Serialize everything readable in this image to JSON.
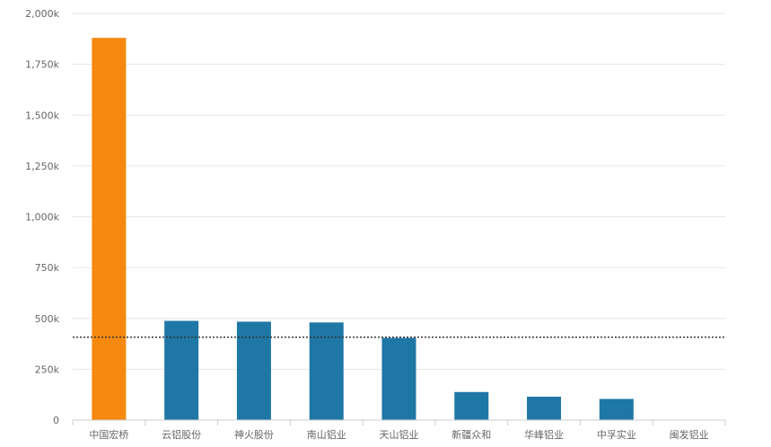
{
  "chart_data": {
    "type": "bar",
    "categories": [
      "中国宏桥",
      "云铝股份",
      "神火股份",
      "南山铝业",
      "天山铝业",
      "新疆众和",
      "华峰铝业",
      "中孚实业",
      "闽发铝业"
    ],
    "values": [
      1880,
      488,
      484,
      480,
      404,
      138,
      115,
      104,
      0
    ],
    "highlight_index": 0,
    "ylim": [
      0,
      2000
    ],
    "yticks": [
      0,
      250,
      500,
      750,
      1000,
      1250,
      1500,
      1750,
      2000
    ],
    "ytick_labels": [
      "0",
      "250k",
      "500k",
      "750k",
      "1,000k",
      "1,250k",
      "1,500k",
      "1,750k",
      "2,000k"
    ],
    "reference_line": 408,
    "grid": true,
    "colors": {
      "highlight": "#f5890f",
      "bar": "#1f77a5",
      "grid": "#e6e6e6",
      "axis": "#cccccc",
      "reference_line": "#333333",
      "tick_text": "#666666"
    }
  }
}
